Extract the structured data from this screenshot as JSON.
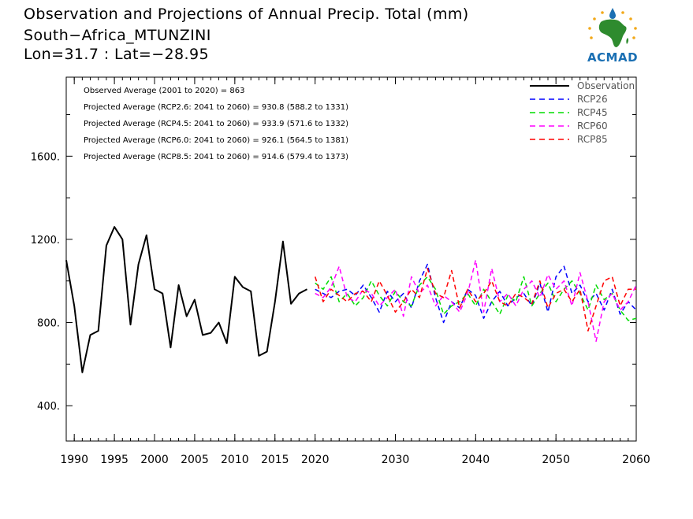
{
  "title": {
    "line1": "Observation and Projections of Annual Precip. Total (mm)",
    "line2": "South−Africa_MTUNZINI",
    "line3": "Lon=31.7 : Lat=−28.95"
  },
  "logo": {
    "name": "ACMAD",
    "icon": "africa-map-logo-icon",
    "colors": [
      "#2e8b2e",
      "#f2a818",
      "#1a6fb3"
    ]
  },
  "chart_data": {
    "type": "line",
    "xlim": [
      1989,
      2060
    ],
    "ylim": [
      230,
      1980
    ],
    "x_ticks": [
      {
        "value": 1990,
        "label": "1990"
      },
      {
        "value": 1995,
        "label": "1995"
      },
      {
        "value": 2000,
        "label": "2000"
      },
      {
        "value": 2005,
        "label": "2005"
      },
      {
        "value": 2010,
        "label": "2010"
      },
      {
        "value": 2015,
        "label": "2015"
      },
      {
        "value": 2020,
        "label": "2020"
      },
      {
        "value": 2030,
        "label": "2030"
      },
      {
        "value": 2040,
        "label": "2040"
      },
      {
        "value": 2050,
        "label": "2050"
      },
      {
        "value": 2060,
        "label": "2060"
      }
    ],
    "y_ticks": [
      {
        "value": 400,
        "label": "400."
      },
      {
        "value": 800,
        "label": "800."
      },
      {
        "value": 1200,
        "label": "1200."
      },
      {
        "value": 1600,
        "label": "1600."
      }
    ],
    "y_minor_ticks": [
      600,
      1000,
      1400,
      1800
    ],
    "annotations": [
      "Observed Average (2001 to 2020) = 863",
      "Projected Average (RCP2.6: 2041 to 2060) = 930.8 (588.2 to 1331)",
      "Projected Average (RCP4.5: 2041 to 2060) = 933.9 (571.6 to 1332)",
      "Projected Average (RCP6.0: 2041 to 2060) = 926.1 (564.5 to 1381)",
      "Projected Average (RCP8.5: 2041 to 2060) = 914.6 (579.4 to 1373)"
    ],
    "legend_position": "top-right",
    "series": [
      {
        "name": "Observation",
        "color": "#000000",
        "dashed": false,
        "x": [
          1989,
          1990,
          1991,
          1992,
          1993,
          1994,
          1995,
          1996,
          1997,
          1998,
          1999,
          2000,
          2001,
          2002,
          2003,
          2004,
          2005,
          2006,
          2007,
          2008,
          2009,
          2010,
          2011,
          2012,
          2013,
          2014,
          2015,
          2016,
          2017,
          2018,
          2019
        ],
        "values": [
          1100,
          880,
          560,
          740,
          760,
          1170,
          1260,
          1200,
          790,
          1080,
          1220,
          960,
          940,
          680,
          980,
          830,
          910,
          740,
          750,
          800,
          700,
          1020,
          970,
          950,
          640,
          660,
          900,
          1190,
          890,
          940,
          960
        ]
      },
      {
        "name": "RCP26",
        "color": "#0000ff",
        "dashed": true,
        "x": [
          2020,
          2021,
          2022,
          2023,
          2024,
          2025,
          2026,
          2027,
          2028,
          2029,
          2030,
          2031,
          2032,
          2033,
          2034,
          2035,
          2036,
          2037,
          2038,
          2039,
          2040,
          2041,
          2042,
          2043,
          2044,
          2045,
          2046,
          2047,
          2048,
          2049,
          2050,
          2051,
          2052,
          2053,
          2054,
          2055,
          2056,
          2057,
          2058,
          2059,
          2060
        ],
        "values": [
          960,
          940,
          920,
          950,
          960,
          930,
          980,
          920,
          850,
          950,
          900,
          940,
          870,
          1000,
          1080,
          920,
          800,
          900,
          870,
          960,
          930,
          820,
          900,
          950,
          880,
          920,
          940,
          880,
          990,
          850,
          1020,
          1070,
          940,
          980,
          900,
          940,
          860,
          960,
          840,
          900,
          860
        ]
      },
      {
        "name": "RCP45",
        "color": "#00dd00",
        "dashed": true,
        "x": [
          2020,
          2021,
          2022,
          2023,
          2024,
          2025,
          2026,
          2027,
          2028,
          2029,
          2030,
          2031,
          2032,
          2033,
          2034,
          2035,
          2036,
          2037,
          2038,
          2039,
          2040,
          2041,
          2042,
          2043,
          2044,
          2045,
          2046,
          2047,
          2048,
          2049,
          2050,
          2051,
          2052,
          2053,
          2054,
          2055,
          2056,
          2057,
          2058,
          2059,
          2060
        ],
        "values": [
          990,
          960,
          1020,
          900,
          940,
          880,
          920,
          1000,
          930,
          880,
          950,
          900,
          880,
          980,
          1020,
          960,
          840,
          880,
          900,
          940,
          880,
          960,
          900,
          840,
          930,
          900,
          1020,
          880,
          940,
          990,
          900,
          960,
          1000,
          940,
          860,
          980,
          910,
          940,
          860,
          810,
          820
        ]
      },
      {
        "name": "RCP60",
        "color": "#ff00ff",
        "dashed": true,
        "x": [
          2020,
          2021,
          2022,
          2023,
          2024,
          2025,
          2026,
          2027,
          2028,
          2029,
          2030,
          2031,
          2032,
          2033,
          2034,
          2035,
          2036,
          2037,
          2038,
          2039,
          2040,
          2041,
          2042,
          2043,
          2044,
          2045,
          2046,
          2047,
          2048,
          2049,
          2050,
          2051,
          2052,
          2053,
          2054,
          2055,
          2056,
          2057,
          2058,
          2059,
          2060
        ],
        "values": [
          940,
          920,
          970,
          1070,
          920,
          900,
          960,
          940,
          880,
          920,
          960,
          830,
          1020,
          940,
          980,
          880,
          930,
          900,
          850,
          940,
          1100,
          850,
          1060,
          900,
          940,
          880,
          960,
          1000,
          920,
          1030,
          960,
          1000,
          880,
          1040,
          900,
          710,
          900,
          940,
          860,
          900,
          980
        ]
      },
      {
        "name": "RCP85",
        "color": "#ff0000",
        "dashed": true,
        "x": [
          2020,
          2021,
          2022,
          2023,
          2024,
          2025,
          2026,
          2027,
          2028,
          2029,
          2030,
          2031,
          2032,
          2033,
          2034,
          2035,
          2036,
          2037,
          2038,
          2039,
          2040,
          2041,
          2042,
          2043,
          2044,
          2045,
          2046,
          2047,
          2048,
          2049,
          2050,
          2051,
          2052,
          2053,
          2054,
          2055,
          2056,
          2057,
          2058,
          2059,
          2060
        ],
        "values": [
          1020,
          900,
          960,
          930,
          900,
          940,
          950,
          900,
          1000,
          930,
          850,
          900,
          960,
          920,
          1060,
          940,
          920,
          1050,
          870,
          960,
          900,
          940,
          1000,
          900,
          880,
          940,
          920,
          890,
          1000,
          870,
          940,
          960,
          900,
          960,
          760,
          880,
          1000,
          1020,
          880,
          960,
          960
        ]
      }
    ]
  }
}
